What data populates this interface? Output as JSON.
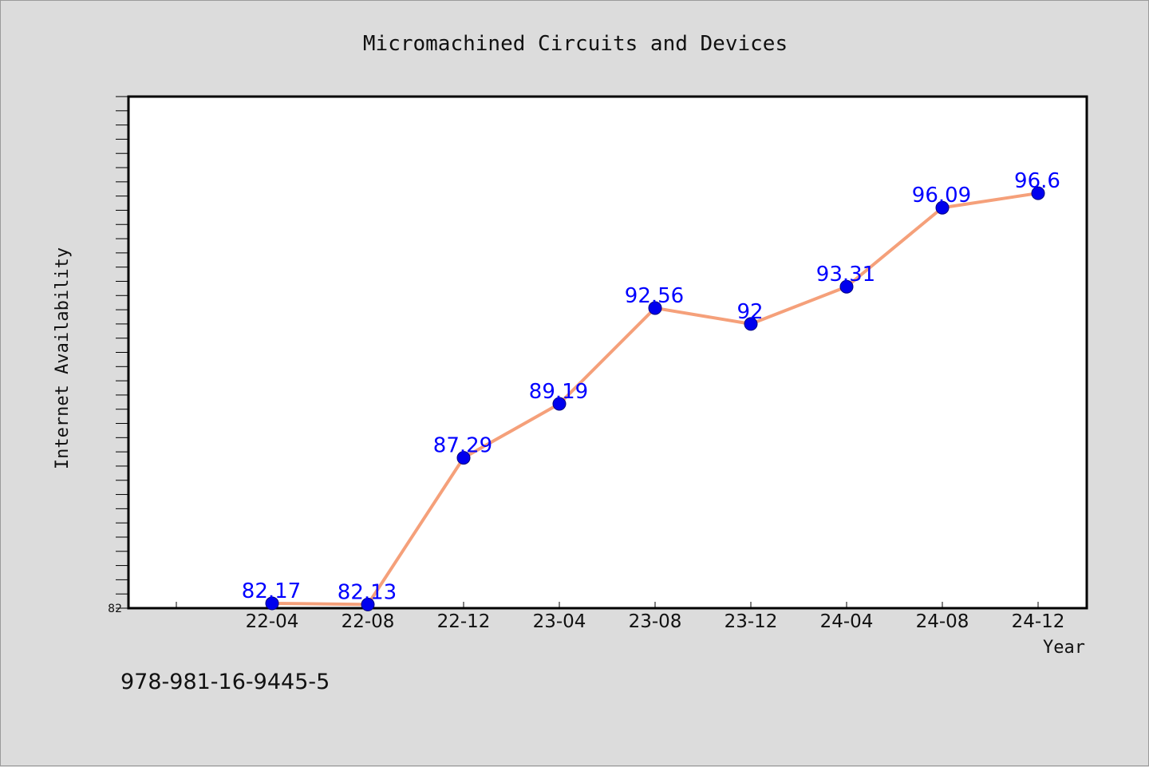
{
  "footer": {
    "isbn": "978-981-16-9445-5"
  },
  "colors": {
    "line": "#f5a07a",
    "marker": "#0000ee",
    "marker_edge": "#000080",
    "data_label": "#0000ff",
    "background": "#dcdcdc",
    "plot_background": "#ffffff"
  },
  "chart_data": {
    "type": "line",
    "title": "Micromachined Circuits and Devices",
    "xlabel": "Year",
    "ylabel": "Internet Availability",
    "categories": [
      "22-04",
      "22-08",
      "22-12",
      "23-04",
      "23-08",
      "23-12",
      "24-04",
      "24-08",
      "24-12"
    ],
    "series": [
      {
        "values": [
          82.17,
          82.13,
          87.29,
          89.19,
          92.56,
          92,
          93.31,
          96.09,
          96.6
        ]
      }
    ],
    "data_labels": [
      "82.17",
      "82.13",
      "87.29",
      "89.19",
      "92.56",
      "92",
      "93.31",
      "96.09",
      "96.6"
    ],
    "ylim": [
      82,
      100
    ],
    "y_tick_labels": [
      "82"
    ],
    "grid": false,
    "legend": "none"
  }
}
